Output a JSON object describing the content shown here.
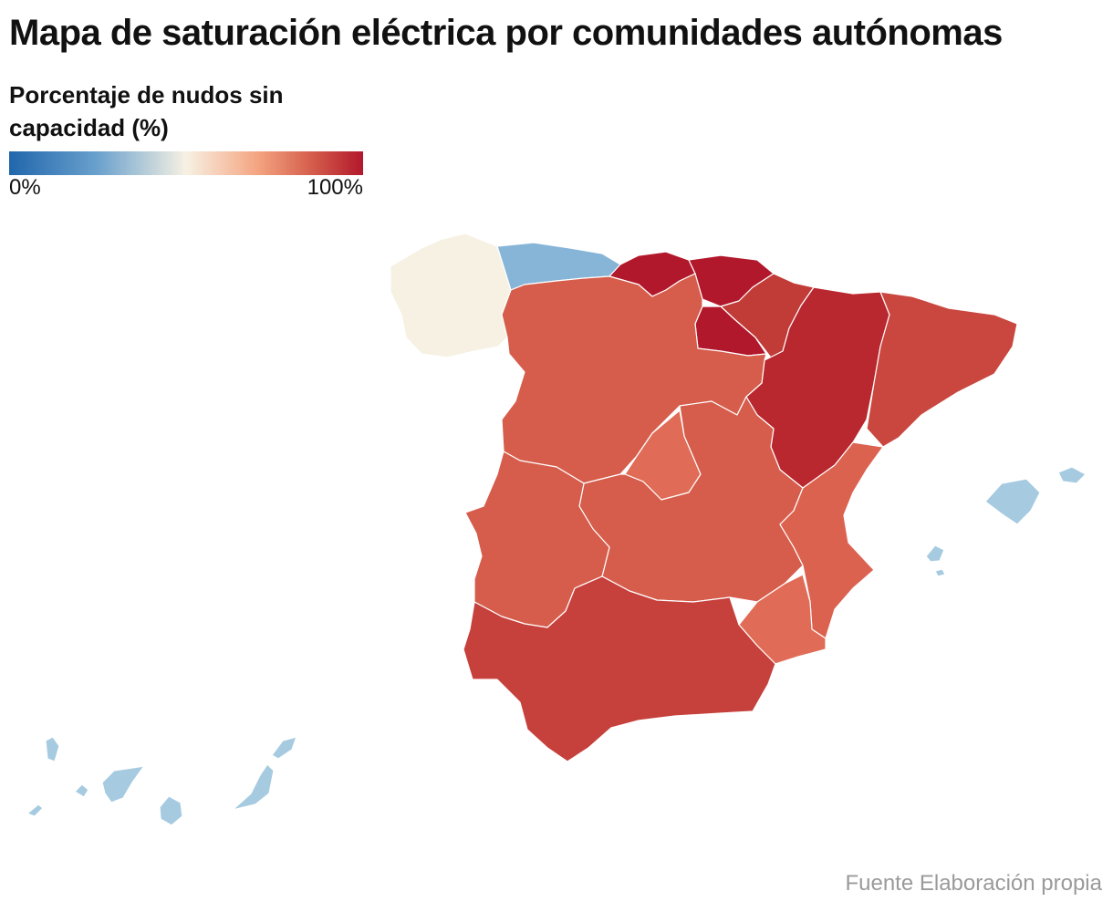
{
  "title": "Mapa de saturación eléctrica por comunidades autónomas",
  "legend": {
    "title": "Porcentaje de nudos sin capacidad (%)",
    "min_label": "0%",
    "max_label": "100%",
    "scale": {
      "min": 0,
      "max": 100,
      "colors": [
        "#2166ac",
        "#6aa1cd",
        "#f7f1e3",
        "#f4a582",
        "#d6604d",
        "#b2182b"
      ]
    }
  },
  "source": "Fuente Elaboración propia",
  "regions": [
    {
      "id": "galicia",
      "color": "#f7f1e3"
    },
    {
      "id": "asturias",
      "color": "#86b5d8"
    },
    {
      "id": "cantabria",
      "color": "#b2182b"
    },
    {
      "id": "pais-vasco",
      "color": "#b2182b"
    },
    {
      "id": "navarra",
      "color": "#c13b37"
    },
    {
      "id": "la-rioja",
      "color": "#b2182b"
    },
    {
      "id": "aragon",
      "color": "#b9272f"
    },
    {
      "id": "cataluna",
      "color": "#c9473f"
    },
    {
      "id": "castilla-y-leon",
      "color": "#d65d4b"
    },
    {
      "id": "madrid",
      "color": "#e06c57"
    },
    {
      "id": "castilla-la-mancha",
      "color": "#d65d4b"
    },
    {
      "id": "extremadura",
      "color": "#d65d4b"
    },
    {
      "id": "comunidad-valenciana",
      "color": "#dc6250"
    },
    {
      "id": "murcia",
      "color": "#e06c57"
    },
    {
      "id": "andalucia",
      "color": "#c6403c"
    },
    {
      "id": "baleares",
      "color": "#a6cbe1"
    },
    {
      "id": "canarias",
      "color": "#a6cbe1"
    }
  ]
}
